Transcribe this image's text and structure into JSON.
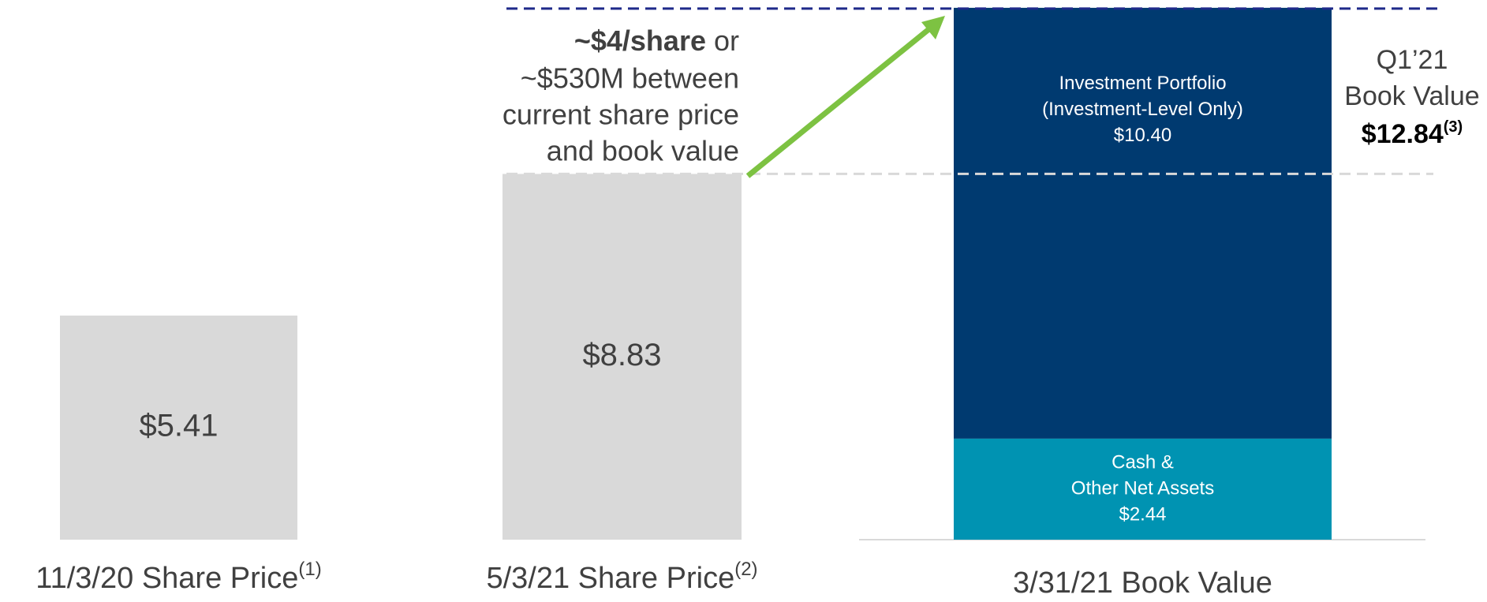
{
  "chart_data": {
    "type": "bar",
    "stacked": true,
    "categories": [
      "11/3/20 Share Price",
      "5/3/21 Share Price",
      "3/31/21 Book Value"
    ],
    "category_notes": [
      "(1)",
      "(2)",
      null
    ],
    "series": [
      {
        "color": "#d9d9d9",
        "values": [
          5.41,
          8.83,
          null
        ],
        "value_labels": [
          "$5.41",
          "$8.83",
          null
        ]
      },
      {
        "name_lines": [
          "Cash &",
          "Other Net Assets"
        ],
        "color": "#0093b2",
        "values": [
          null,
          null,
          2.44
        ],
        "value_labels": [
          null,
          null,
          "$2.44"
        ]
      },
      {
        "name_lines": [
          "Investment Portfolio",
          "(Investment-Level Only)"
        ],
        "color": "#003a70",
        "values": [
          null,
          null,
          10.4
        ],
        "value_labels": [
          null,
          null,
          "$10.40"
        ]
      }
    ],
    "annotation": {
      "bold": "~$4/share",
      "rest": " or",
      "lines": [
        "~$530M between",
        "current share price",
        "and book value"
      ],
      "color": "#7dc242"
    },
    "total": {
      "lines": [
        "Q1’21",
        "Book Value"
      ],
      "value": 12.84,
      "value_label": "$12.84",
      "note": "(3)",
      "color": "#1f2a8a"
    }
  }
}
